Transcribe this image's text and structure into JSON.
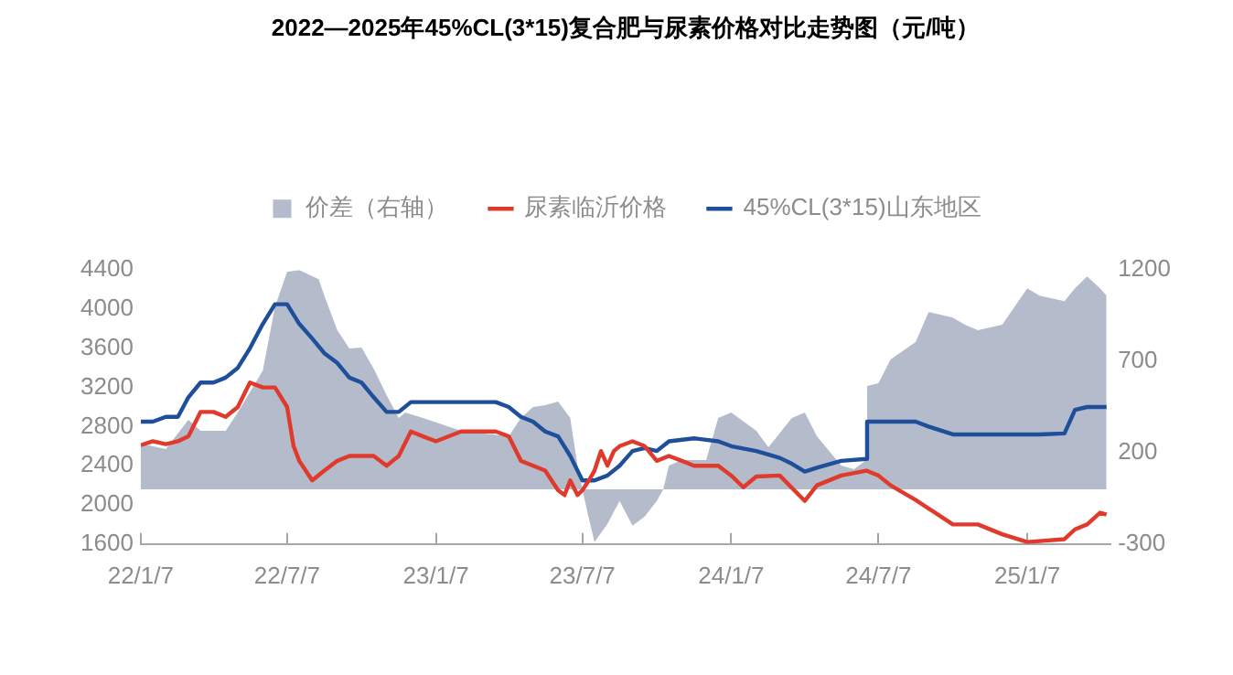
{
  "chart_data": {
    "type": "line",
    "title": "2022—2025年45%CL(3*15)复合肥与尿素价格对比走势图（元/吨）",
    "xlim": [
      "2022-01-07",
      "2025-04-20"
    ],
    "xticks": [
      {
        "value": "2022-01-07",
        "label": "22/1/7"
      },
      {
        "value": "2022-07-07",
        "label": "22/7/7"
      },
      {
        "value": "2023-01-07",
        "label": "23/1/7"
      },
      {
        "value": "2023-07-07",
        "label": "23/7/7"
      },
      {
        "value": "2024-01-07",
        "label": "24/1/7"
      },
      {
        "value": "2024-07-07",
        "label": "24/7/7"
      },
      {
        "value": "2025-01-07",
        "label": "25/1/7"
      }
    ],
    "ylim": [
      1600,
      4400
    ],
    "yticks": [
      1600,
      2000,
      2400,
      2800,
      3200,
      3600,
      4000,
      4400
    ],
    "y2lim": [
      -300,
      1200
    ],
    "y2ticks": [
      -300,
      200,
      700,
      1200
    ],
    "legend": "top",
    "grid": false,
    "marker": "none",
    "series": [
      {
        "name": "价差（右轴）",
        "type": "area",
        "axis": "y2",
        "color": "#b4bccb",
        "x": [
          "2022-01-07",
          "2022-02-07",
          "2022-03-07",
          "2022-03-22",
          "2022-04-22",
          "2022-05-07",
          "2022-06-07",
          "2022-06-22",
          "2022-07-07",
          "2022-07-22",
          "2022-08-15",
          "2022-08-22",
          "2022-09-07",
          "2022-09-22",
          "2022-10-07",
          "2022-10-22",
          "2022-11-07",
          "2022-11-22",
          "2022-11-30",
          "2022-12-22",
          "2023-02-07",
          "2023-04-07",
          "2023-04-22",
          "2023-05-07",
          "2023-05-22",
          "2023-06-07",
          "2023-06-22",
          "2023-07-01",
          "2023-07-07",
          "2023-07-15",
          "2023-07-22",
          "2023-08-07",
          "2023-08-22",
          "2023-09-07",
          "2023-09-22",
          "2023-10-07",
          "2023-10-15",
          "2023-10-22",
          "2023-11-07",
          "2023-12-07",
          "2023-12-22",
          "2024-01-07",
          "2024-02-07",
          "2024-02-22",
          "2024-03-22",
          "2024-04-07",
          "2024-04-22",
          "2024-05-22",
          "2024-06-07",
          "2024-06-22",
          "2024-06-23",
          "2024-07-07",
          "2024-07-22",
          "2024-08-22",
          "2024-09-07",
          "2024-10-07",
          "2024-10-22",
          "2024-11-07",
          "2024-12-07",
          "2025-01-07",
          "2025-01-22",
          "2025-02-22",
          "2025-03-07",
          "2025-03-22",
          "2025-04-07",
          "2025-04-15"
        ],
        "values": [
          250,
          220,
          380,
          320,
          320,
          420,
          650,
          1000,
          1190,
          1200,
          1150,
          1060,
          870,
          770,
          775,
          660,
          515,
          390,
          420,
          390,
          320,
          290,
          390,
          450,
          460,
          480,
          390,
          130,
          0,
          -160,
          -290,
          -190,
          -65,
          -200,
          -150,
          -65,
          0,
          130,
          160,
          160,
          390,
          420,
          320,
          230,
          390,
          420,
          290,
          130,
          110,
          160,
          565,
          580,
          710,
          805,
          970,
          940,
          900,
          870,
          900,
          1100,
          1060,
          1030,
          1100,
          1165,
          1100,
          1060
        ]
      },
      {
        "name": "尿素临沂价格",
        "type": "line",
        "color": "#e03a2d",
        "x": [
          "2022-01-07",
          "2022-01-22",
          "2022-02-07",
          "2022-02-22",
          "2022-03-07",
          "2022-03-22",
          "2022-04-07",
          "2022-04-22",
          "2022-05-07",
          "2022-05-22",
          "2022-06-07",
          "2022-06-22",
          "2022-07-07",
          "2022-07-15",
          "2022-07-22",
          "2022-08-07",
          "2022-08-22",
          "2022-09-07",
          "2022-09-22",
          "2022-10-07",
          "2022-10-22",
          "2022-11-07",
          "2022-11-22",
          "2022-12-07",
          "2022-12-22",
          "2023-01-07",
          "2023-02-07",
          "2023-03-22",
          "2023-04-07",
          "2023-04-22",
          "2023-05-22",
          "2023-06-07",
          "2023-06-15",
          "2023-06-22",
          "2023-07-01",
          "2023-07-07",
          "2023-07-15",
          "2023-07-22",
          "2023-07-30",
          "2023-08-07",
          "2023-08-15",
          "2023-08-22",
          "2023-09-07",
          "2023-09-22",
          "2023-10-07",
          "2023-10-22",
          "2023-11-07",
          "2023-11-22",
          "2023-12-22",
          "2024-01-07",
          "2024-01-22",
          "2024-02-07",
          "2024-03-07",
          "2024-04-07",
          "2024-04-22",
          "2024-05-22",
          "2024-06-22",
          "2024-07-07",
          "2024-07-22",
          "2024-08-22",
          "2024-10-07",
          "2024-11-07",
          "2024-12-07",
          "2025-01-07",
          "2025-02-22",
          "2025-03-07",
          "2025-03-22",
          "2025-04-07",
          "2025-04-15"
        ],
        "values": [
          2610,
          2650,
          2620,
          2650,
          2700,
          2950,
          2950,
          2900,
          3000,
          3250,
          3200,
          3200,
          3000,
          2600,
          2450,
          2250,
          2350,
          2450,
          2500,
          2500,
          2500,
          2400,
          2500,
          2750,
          2700,
          2650,
          2750,
          2750,
          2700,
          2450,
          2350,
          2150,
          2100,
          2250,
          2100,
          2150,
          2250,
          2350,
          2550,
          2400,
          2550,
          2600,
          2650,
          2600,
          2450,
          2500,
          2450,
          2400,
          2400,
          2300,
          2180,
          2290,
          2300,
          2040,
          2200,
          2300,
          2350,
          2300,
          2200,
          2050,
          1800,
          1800,
          1700,
          1620,
          1650,
          1750,
          1800,
          1920,
          1900
        ]
      },
      {
        "name": "45%CL(3*15)山东地区",
        "type": "line",
        "color": "#1f4e9a",
        "x": [
          "2022-01-07",
          "2022-01-22",
          "2022-02-07",
          "2022-02-22",
          "2022-03-07",
          "2022-03-22",
          "2022-04-07",
          "2022-04-22",
          "2022-05-07",
          "2022-05-22",
          "2022-06-07",
          "2022-06-22",
          "2022-07-07",
          "2022-07-22",
          "2022-08-07",
          "2022-08-22",
          "2022-09-07",
          "2022-09-22",
          "2022-10-07",
          "2022-10-22",
          "2022-11-07",
          "2022-11-22",
          "2022-12-07",
          "2023-01-07",
          "2023-02-07",
          "2023-03-07",
          "2023-03-22",
          "2023-04-07",
          "2023-04-22",
          "2023-05-07",
          "2023-05-22",
          "2023-06-07",
          "2023-06-22",
          "2023-07-07",
          "2023-07-22",
          "2023-08-07",
          "2023-08-22",
          "2023-09-07",
          "2023-09-22",
          "2023-10-07",
          "2023-10-22",
          "2023-11-22",
          "2023-12-22",
          "2024-01-07",
          "2024-02-07",
          "2024-03-07",
          "2024-03-22",
          "2024-04-07",
          "2024-04-22",
          "2024-05-22",
          "2024-06-22",
          "2024-06-23",
          "2024-08-22",
          "2024-09-07",
          "2024-10-07",
          "2024-12-07",
          "2025-01-22",
          "2025-02-22",
          "2025-03-07",
          "2025-03-22",
          "2025-04-15"
        ],
        "values": [
          2850,
          2850,
          2900,
          2900,
          3100,
          3250,
          3250,
          3300,
          3400,
          3600,
          3850,
          4050,
          4050,
          3850,
          3700,
          3550,
          3450,
          3300,
          3250,
          3100,
          2950,
          2950,
          3050,
          3050,
          3050,
          3050,
          3050,
          3000,
          2900,
          2850,
          2750,
          2700,
          2500,
          2250,
          2250,
          2300,
          2400,
          2550,
          2580,
          2550,
          2650,
          2680,
          2650,
          2600,
          2550,
          2480,
          2420,
          2340,
          2380,
          2450,
          2470,
          2850,
          2850,
          2800,
          2720,
          2720,
          2720,
          2730,
          2970,
          3000,
          3000
        ]
      }
    ]
  }
}
